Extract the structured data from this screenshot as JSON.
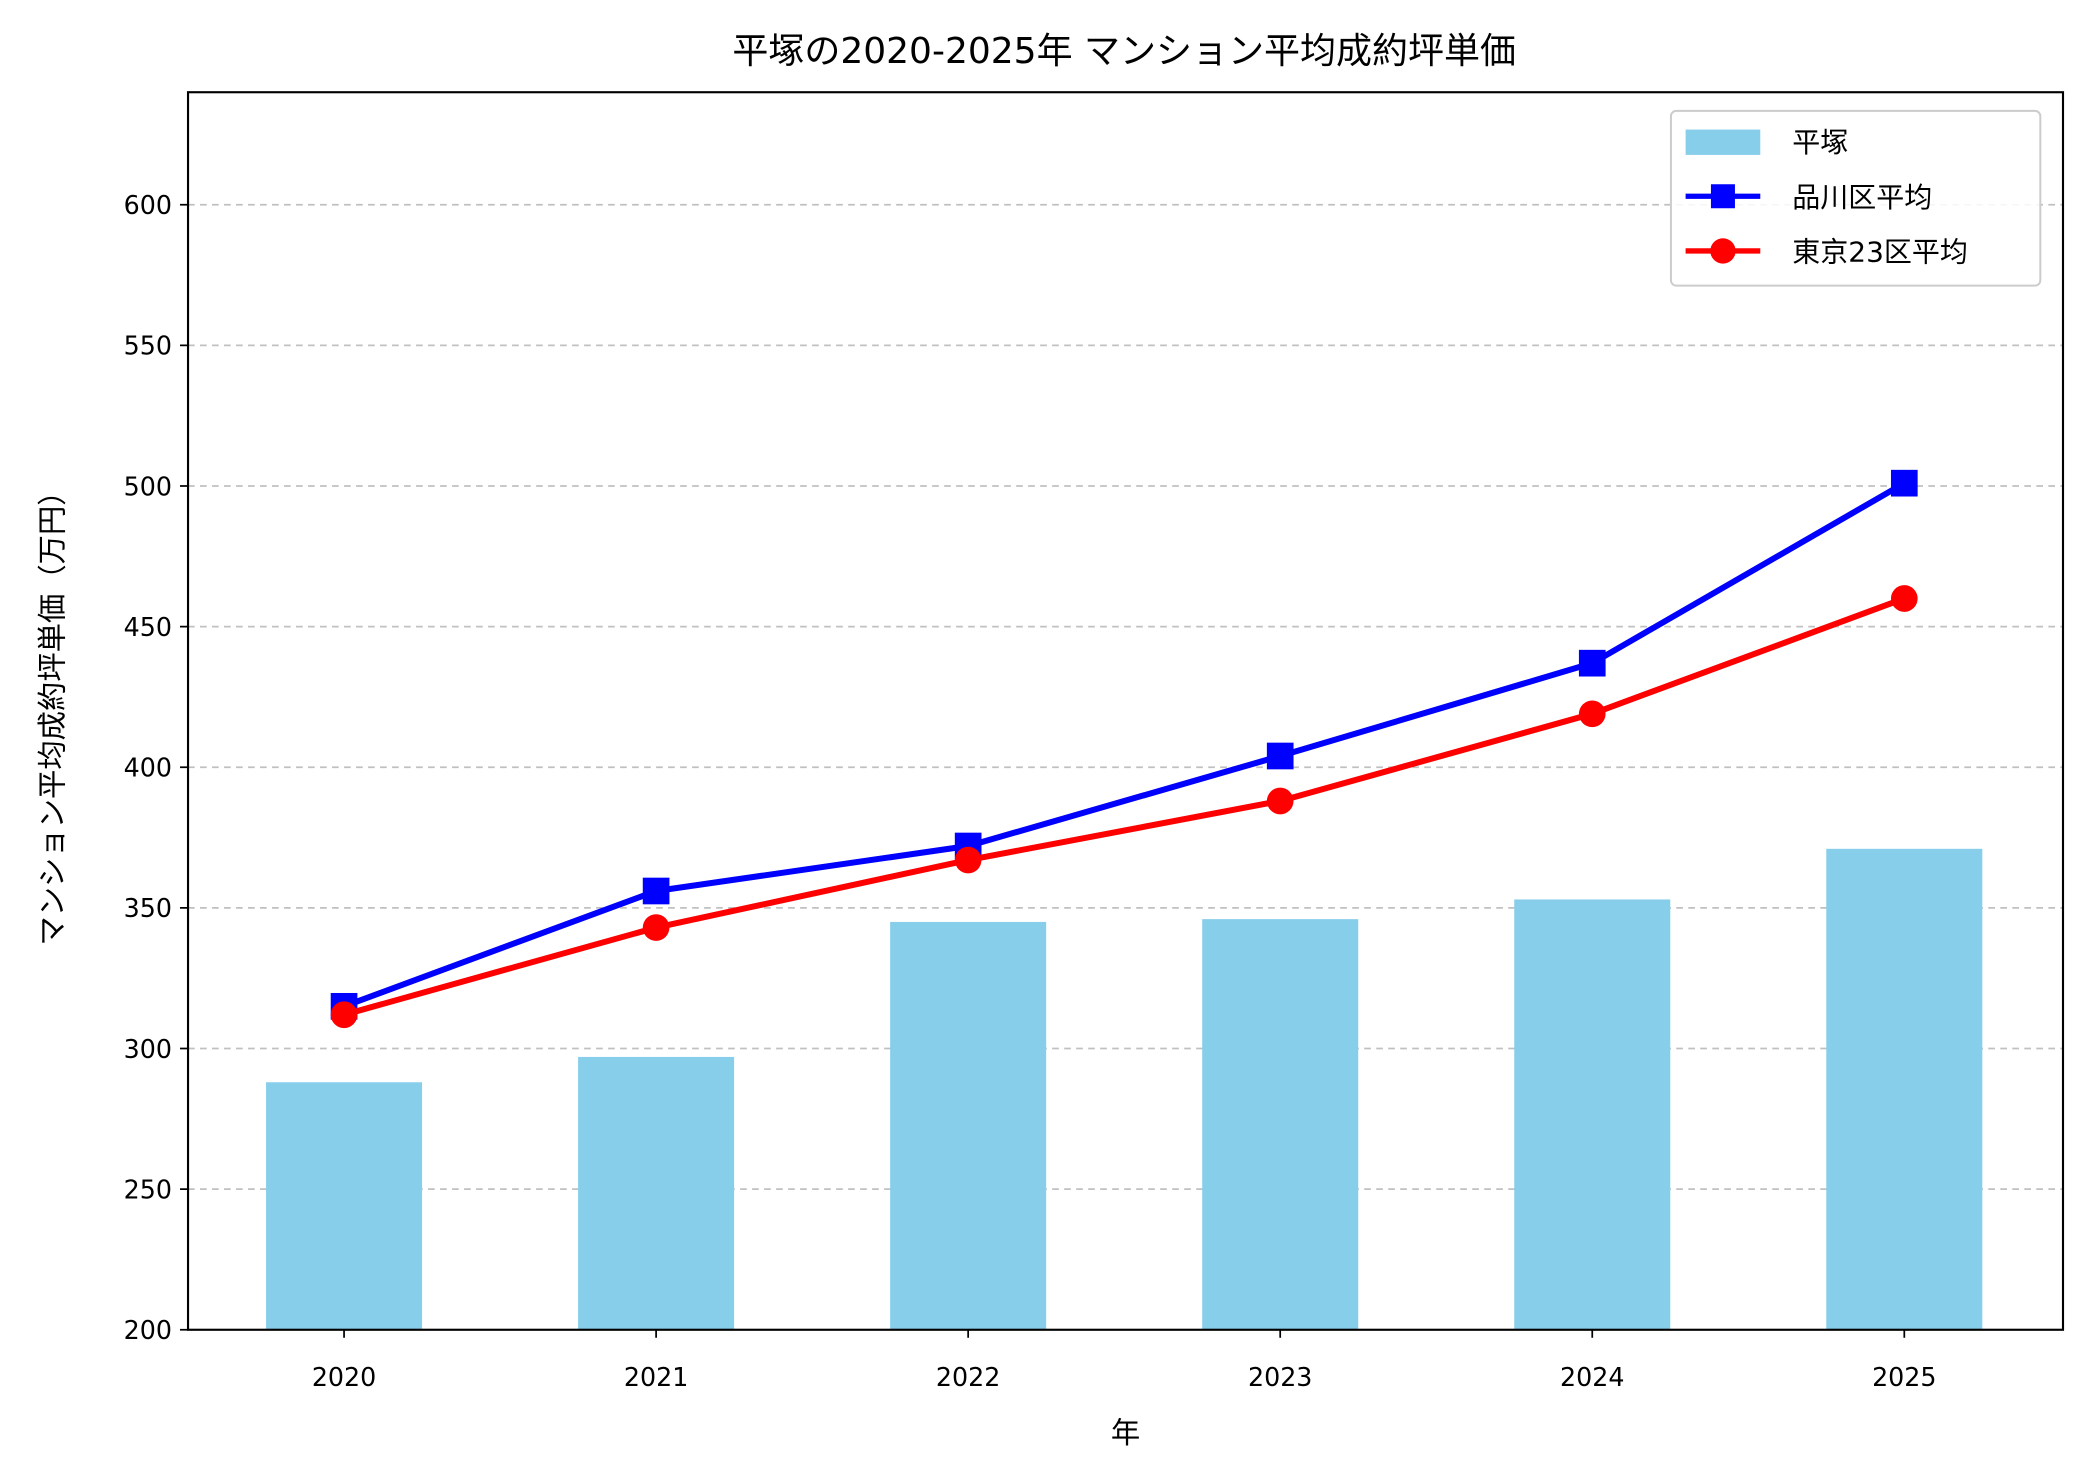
{
  "chart_data": {
    "type": "bar+line",
    "title": "平塚の2020-2025年 マンション平均成約坪単価",
    "xlabel": "年",
    "ylabel": "マンション平均成約坪単価（万円）",
    "categories": [
      "2020",
      "2021",
      "2022",
      "2023",
      "2024",
      "2025"
    ],
    "ylim": [
      200,
      640
    ],
    "yticks": [
      200,
      250,
      300,
      350,
      400,
      450,
      500,
      550,
      600
    ],
    "grid": "y-dashed",
    "legend_placement": "top-right",
    "series": [
      {
        "name": "平塚",
        "kind": "bar",
        "color": "#87CEEB",
        "values": [
          288,
          297,
          345,
          346,
          353,
          371
        ]
      },
      {
        "name": "品川区平均",
        "kind": "line",
        "marker": "square",
        "color": "#0000FF",
        "values": [
          315,
          356,
          372,
          404,
          437,
          501
        ]
      },
      {
        "name": "東京23区平均",
        "kind": "line",
        "marker": "circle",
        "color": "#FF0000",
        "values": [
          312,
          343,
          367,
          388,
          419,
          460
        ]
      }
    ]
  }
}
